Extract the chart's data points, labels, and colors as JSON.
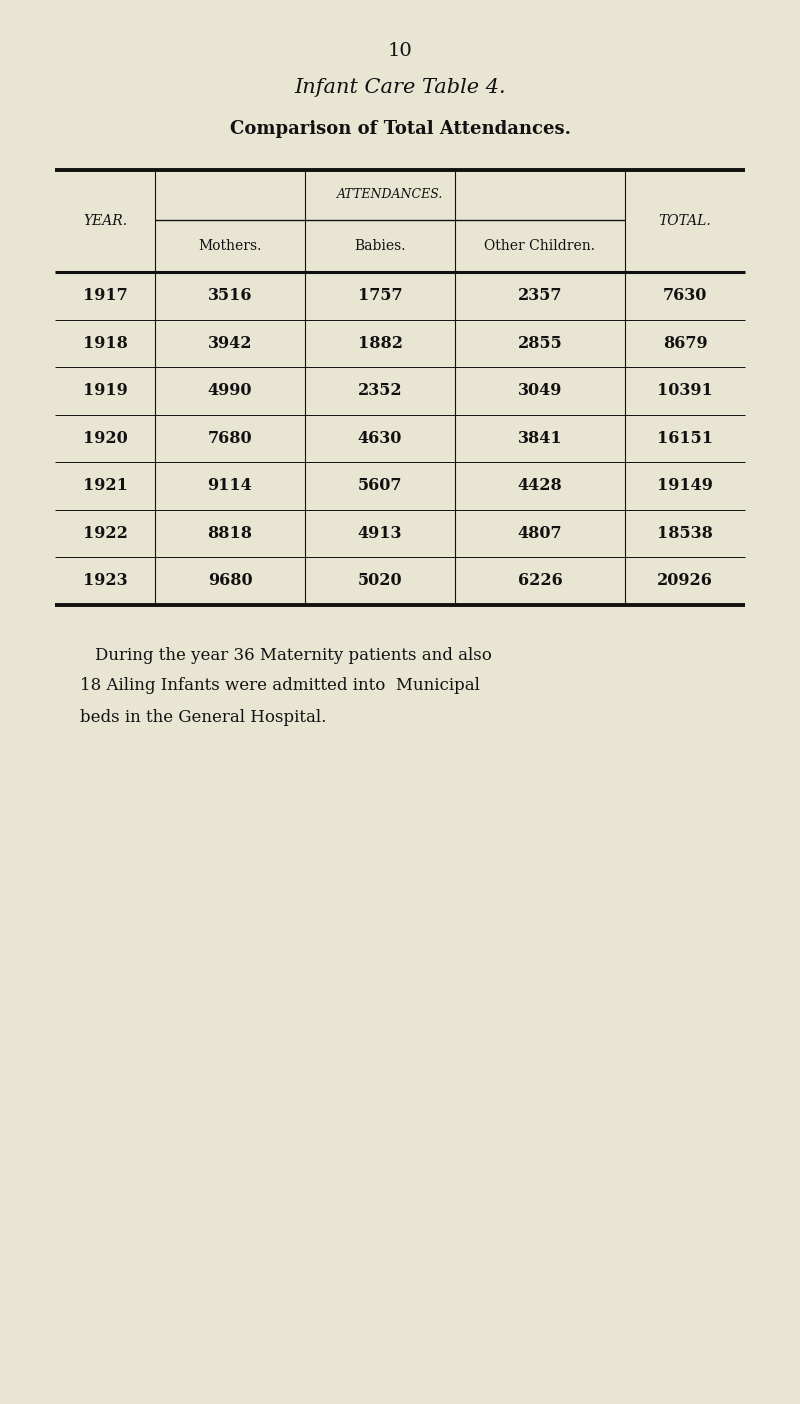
{
  "page_number": "10",
  "title": "Infant Care Table 4.",
  "subtitle": "Comparison of Total Attendances.",
  "attendances_header": "Attendances.",
  "col_headers": [
    "Mothers.",
    "Babies.",
    "Other Children."
  ],
  "year_header": "Year.",
  "total_header": "Total.",
  "rows": [
    {
      "year": "1917",
      "mothers": "3516",
      "babies": "1757",
      "other": "2357",
      "total": "7630"
    },
    {
      "year": "1918",
      "mothers": "3942",
      "babies": "1882",
      "other": "2855",
      "total": "8679"
    },
    {
      "year": "1919",
      "mothers": "4990",
      "babies": "2352",
      "other": "3049",
      "total": "10391"
    },
    {
      "year": "1920",
      "mothers": "7680",
      "babies": "4630",
      "other": "3841",
      "total": "16151"
    },
    {
      "year": "1921",
      "mothers": "9114",
      "babies": "5607",
      "other": "4428",
      "total": "19149"
    },
    {
      "year": "1922",
      "mothers": "8818",
      "babies": "4913",
      "other": "4807",
      "total": "18538"
    },
    {
      "year": "1923",
      "mothers": "9680",
      "babies": "5020",
      "other": "6226",
      "total": "20926"
    }
  ],
  "footer_line1": "During the year 36 Maternity patients and also",
  "footer_line2": "18 Ailing Infants were admitted into  Municipal",
  "footer_line3": "beds in the General Hospital.",
  "bg_color": "#e8e5d2",
  "text_color": "#111111"
}
